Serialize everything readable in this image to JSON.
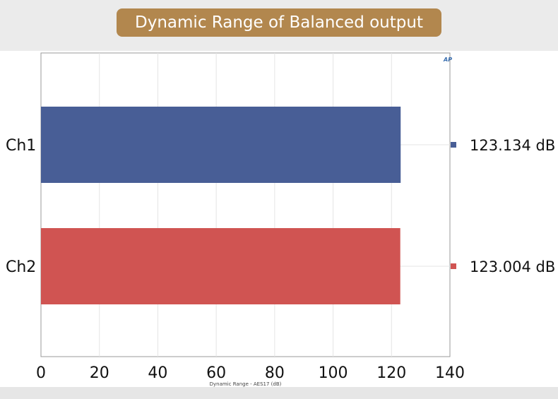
{
  "chart_data": {
    "type": "bar",
    "orientation": "horizontal",
    "title": "Dynamic Range of Balanced output",
    "xlabel": "Dynamic Range - AES17 (dB)",
    "ylabel": "",
    "categories": [
      "Ch1",
      "Ch2"
    ],
    "values": [
      123.134,
      123.004
    ],
    "value_labels": [
      "123.134 dB",
      "123.004 dB"
    ],
    "colors": [
      "#485e96",
      "#d05452"
    ],
    "xlim": [
      0,
      140
    ],
    "xticks": [
      "0",
      "20",
      "40",
      "60",
      "80",
      "100",
      "120",
      "140"
    ],
    "grid": true,
    "legend": "right"
  }
}
